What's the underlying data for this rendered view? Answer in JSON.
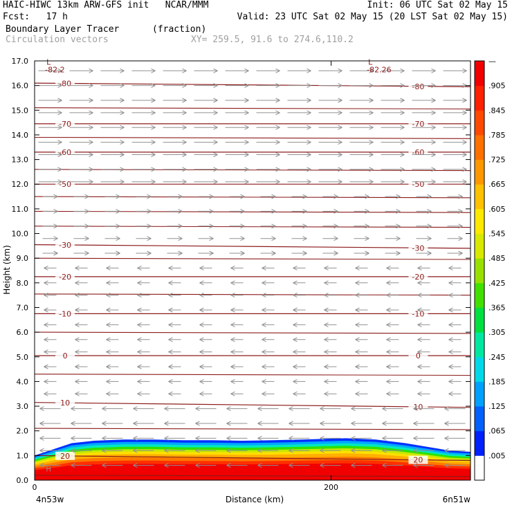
{
  "header": {
    "line1_left": "HAIC-HIWC 13km ARW-GFS init   NCAR/MMM",
    "line1_right": "Init: 06 UTC Sat 02 May 15",
    "line2_left": "Fcst:   17 h",
    "line2_right": "Valid: 23 UTC Sat 02 May 15 (20 LST Sat 02 May 15)",
    "field_name": "Boundary Layer Tracer",
    "field_units": "(fraction)",
    "vector_name": "Circulation vectors",
    "xy_text": "XY= 259.5, 91.6 to 274.6,110.2"
  },
  "chart_data": {
    "type": "heatmap",
    "title": "Boundary Layer Tracer",
    "ylabel": "Height (km)",
    "xlabel": "Distance (km)",
    "ylim": [
      0.0,
      17.0
    ],
    "xlim": [
      0,
      294
    ],
    "y_ticks": [
      "0.0",
      "1.0",
      "2.0",
      "3.0",
      "4.0",
      "5.0",
      "6.0",
      "7.0",
      "8.0",
      "9.0",
      "10.0",
      "11.0",
      "12.0",
      "13.0",
      "14.0",
      "15.0",
      "16.0",
      "17.0"
    ],
    "x_ticks": [
      {
        "value": 0,
        "label": "0"
      },
      {
        "value": 200,
        "label": "200"
      }
    ],
    "x_end_labels": {
      "left": "4n53w",
      "right": "6n51w"
    },
    "colorbar": {
      "ticks": [
        "—",
        ".905",
        ".845",
        ".785",
        ".725",
        ".665",
        ".605",
        ".545",
        ".485",
        ".425",
        ".365",
        ".305",
        ".245",
        ".185",
        ".125",
        ".065",
        ".005"
      ],
      "colors": [
        "#ffffff",
        "#0020ff",
        "#0060ff",
        "#00a0ff",
        "#00d8e8",
        "#00e8a0",
        "#00e040",
        "#40e000",
        "#98e000",
        "#d8e800",
        "#ffe800",
        "#ffc000",
        "#ff9800",
        "#ff7000",
        "#ff4800",
        "#ff2000",
        "#f00000"
      ]
    },
    "tracer_top_km": [
      1.0,
      1.2,
      1.5,
      1.6,
      1.65,
      1.65,
      1.62,
      1.62,
      1.6,
      1.62,
      1.65,
      1.7,
      1.65,
      1.5,
      1.35,
      1.2,
      1.15
    ],
    "tracer_x_km": [
      0,
      10,
      25,
      40,
      60,
      80,
      100,
      120,
      140,
      160,
      180,
      210,
      230,
      250,
      265,
      280,
      294
    ],
    "temperature_contours": [
      {
        "label": "-80",
        "y_km": 16.1,
        "tilt": -0.15
      },
      {
        "label": "-70",
        "y_km": 14.45,
        "tilt": 0.0
      },
      {
        "label": "-60",
        "y_km": 13.3,
        "tilt": 0.0
      },
      {
        "label": "-50",
        "y_km": 12.0,
        "tilt": 0.0
      },
      {
        "label": "-30",
        "y_km": 9.55,
        "tilt": -0.15
      },
      {
        "label": "-20",
        "y_km": 8.25,
        "tilt": 0.0
      },
      {
        "label": "-10",
        "y_km": 6.75,
        "tilt": 0.0
      },
      {
        "label": "0",
        "y_km": 5.05,
        "tilt": 0.0
      },
      {
        "label": "10",
        "y_km": 3.15,
        "tilt": -0.2
      },
      {
        "label": "20",
        "y_km": 1.0,
        "tilt": -0.2
      }
    ],
    "extra_contour_levels_km": [
      15.1,
      13.9,
      12.6,
      11.5,
      10.9,
      10.3,
      9.0,
      7.55,
      6.0,
      4.3,
      2.1,
      0.2
    ],
    "minima": [
      {
        "marker": "L",
        "value": "-82.2",
        "x_km": 8,
        "y_km": 16.85
      },
      {
        "marker": "L",
        "value": "-82.26",
        "x_km": 225,
        "y_km": 16.85
      }
    ],
    "maxima": [
      {
        "marker": "H",
        "x_km": 3,
        "y_km": 0.35
      }
    ],
    "vectors": {
      "columns": 14,
      "rows_top_km": [
        16.6,
        16.0,
        15.4,
        14.9,
        14.3,
        13.7,
        13.2,
        12.6,
        12.1,
        11.5,
        10.9,
        10.3,
        9.8,
        9.2,
        8.6,
        8.0,
        7.5,
        6.9,
        6.3,
        5.7,
        5.2,
        4.6,
        4.0,
        3.5,
        2.9,
        2.3,
        1.7,
        1.2,
        0.6
      ],
      "upper_direction": "east",
      "lower_direction": "west",
      "reversal_height_km": 8.8
    }
  }
}
